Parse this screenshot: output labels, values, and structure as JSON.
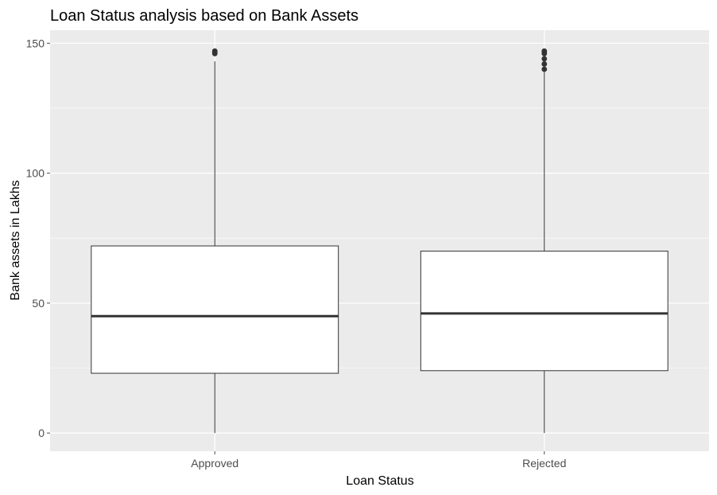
{
  "chart_data": {
    "type": "boxplot",
    "title": "Loan Status analysis based on Bank Assets",
    "xlabel": "Loan Status",
    "ylabel": "Bank assets in Lakhs",
    "categories": [
      "Approved",
      "Rejected"
    ],
    "ylim": [
      -7,
      155
    ],
    "yticks": [
      0,
      50,
      100,
      150
    ],
    "grid": true,
    "boxes": [
      {
        "category": "Approved",
        "min": 0,
        "q1": 23,
        "median": 45,
        "q3": 72,
        "max": 143,
        "outliers": [
          146,
          146.5,
          147
        ]
      },
      {
        "category": "Rejected",
        "min": 0,
        "q1": 24,
        "median": 46,
        "q3": 70,
        "max": 139,
        "outliers": [
          140,
          142,
          144,
          146,
          146.5,
          147
        ]
      }
    ],
    "colors": {
      "panel": "#ebebeb",
      "grid": "#ffffff",
      "box_fill": "#ffffff",
      "box_line": "#333333",
      "outlier": "#333333",
      "tick": "#4d4d4d"
    }
  }
}
